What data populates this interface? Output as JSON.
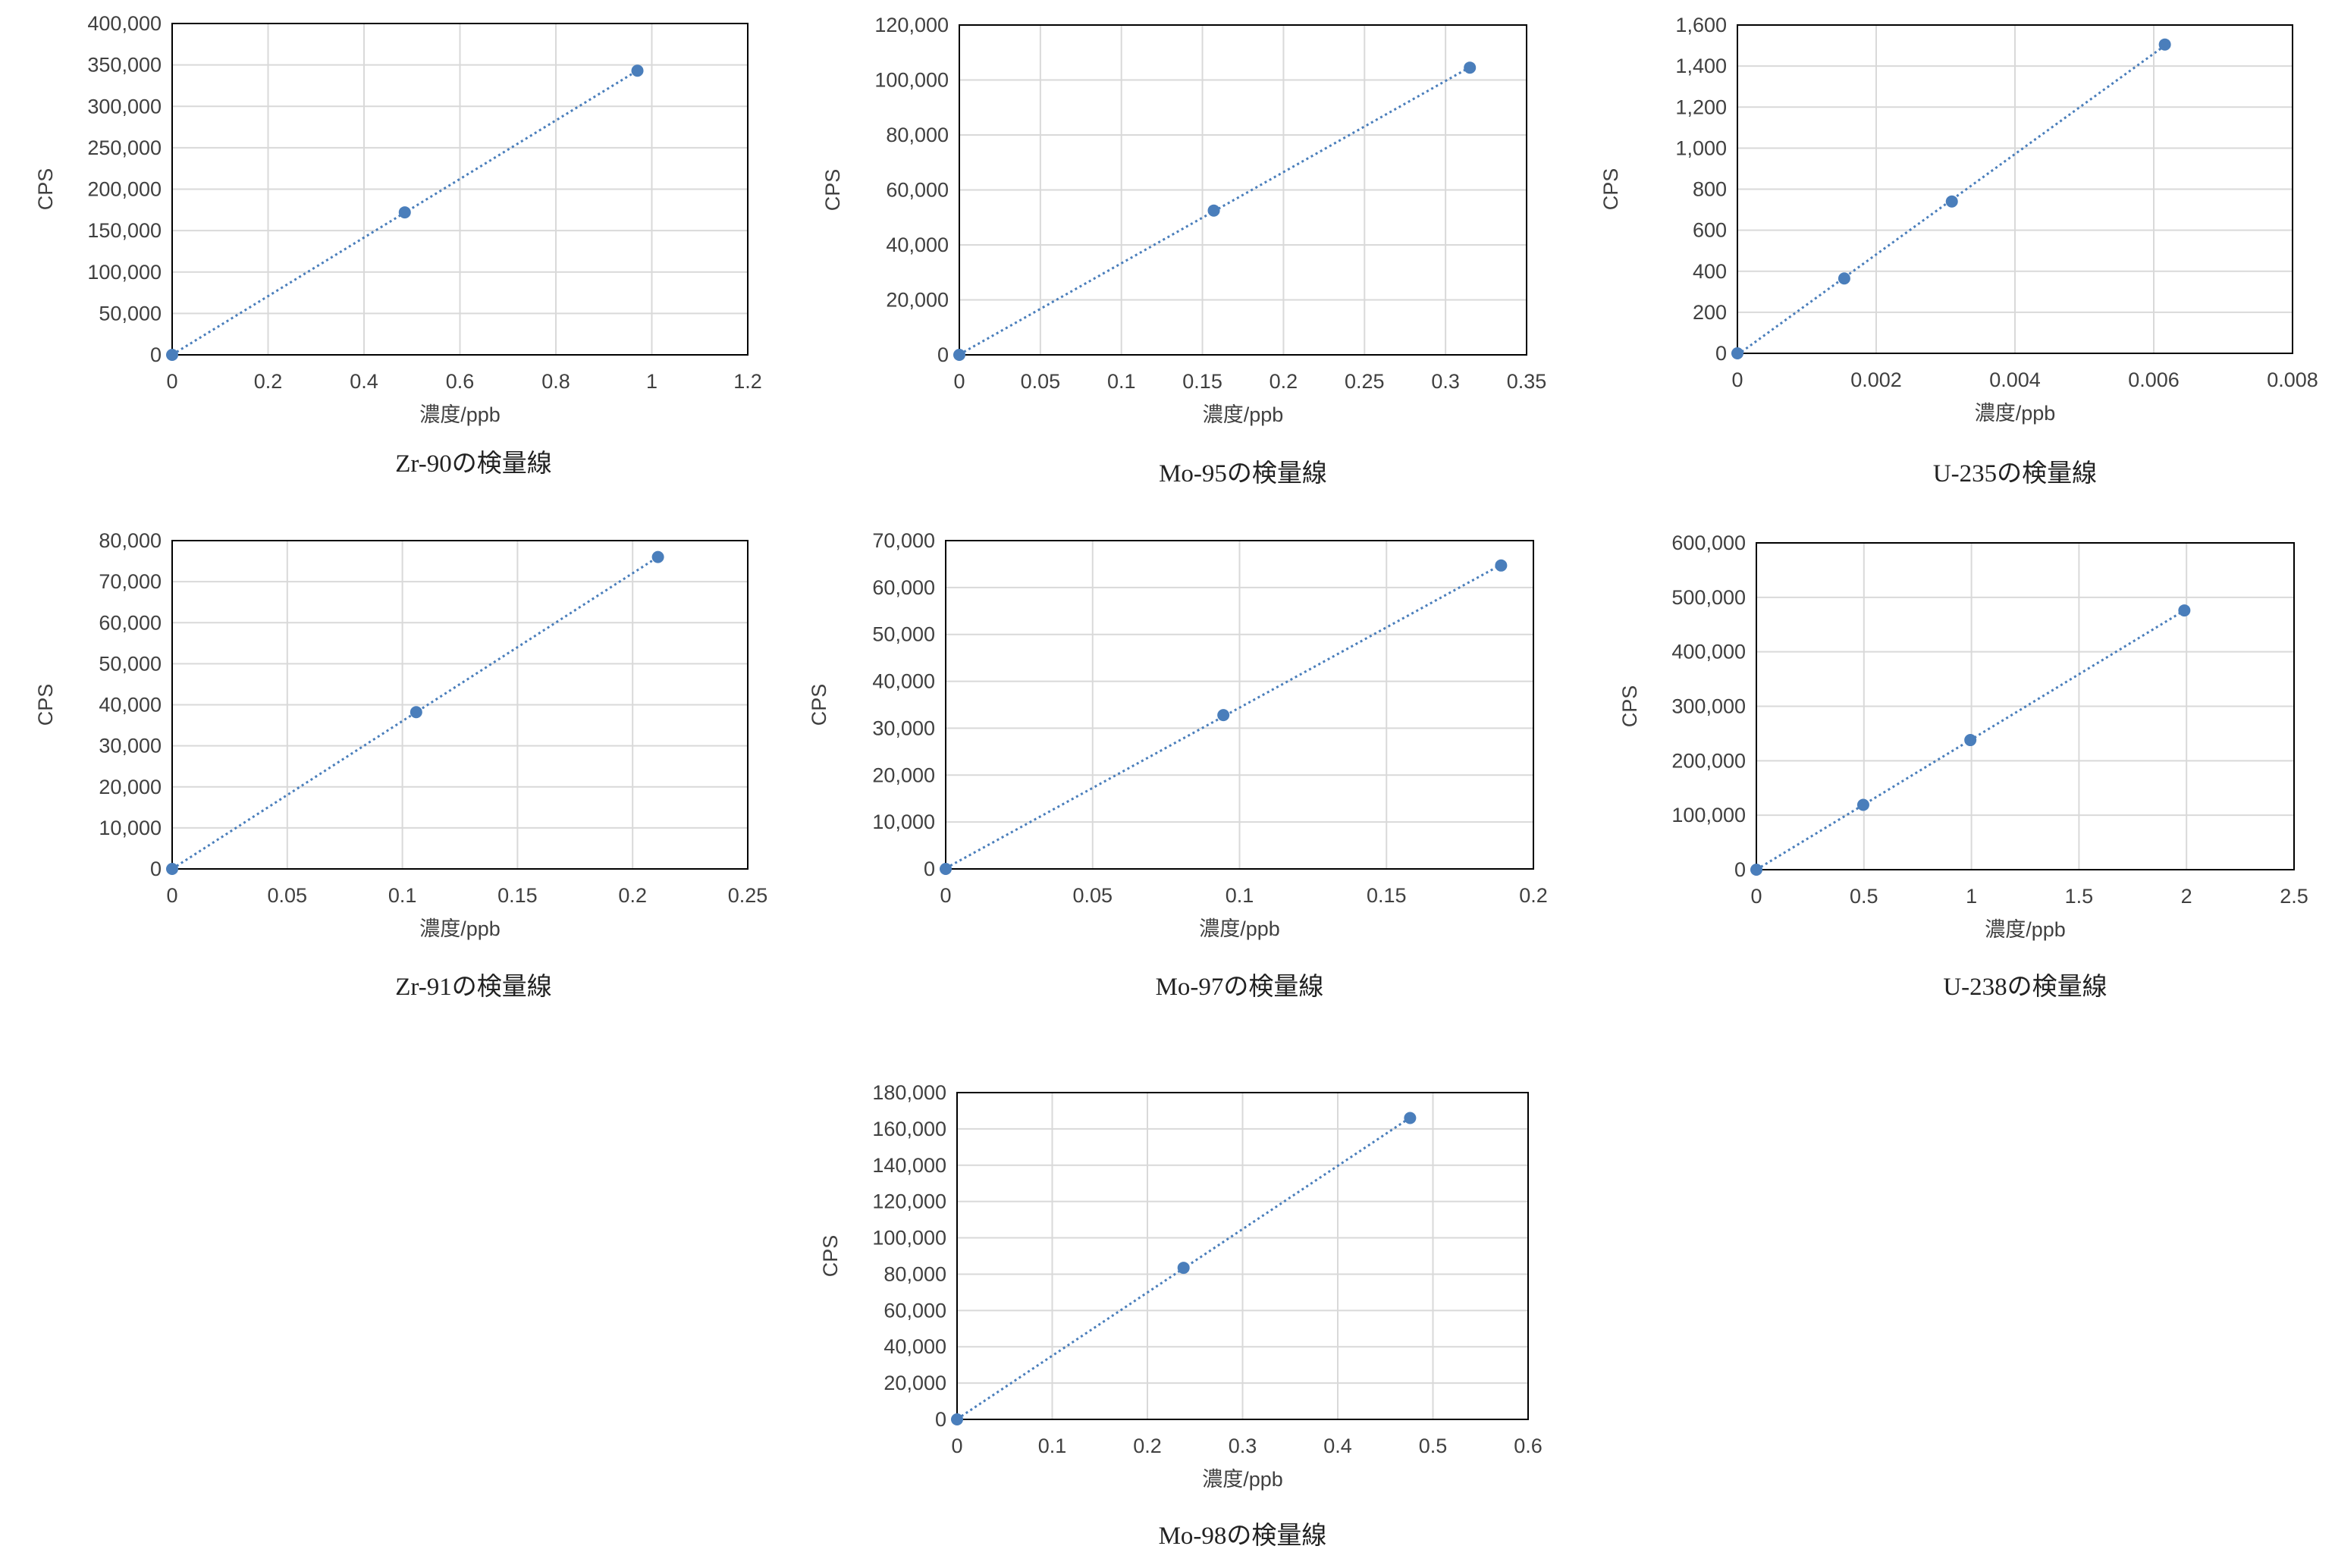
{
  "colors": {
    "marker": "#4a7ebb",
    "trendline": "#4a7ebb",
    "grid": "#d9d9d9",
    "plot_border": "#000000",
    "text": "#404040"
  },
  "chart_data": [
    {
      "type": "scatter",
      "caption": "Zr-90の検量線",
      "xlabel": "濃度/ppb",
      "ylabel": "CPS",
      "xlim": [
        0,
        1.2
      ],
      "ylim": [
        0,
        400000
      ],
      "xticks": [
        0,
        0.2,
        0.4,
        0.6,
        0.8,
        1,
        1.2
      ],
      "xtick_labels": [
        "0",
        "0.2",
        "0.4",
        "0.6",
        "0.8",
        "1",
        "1.2"
      ],
      "yticks": [
        0,
        50000,
        100000,
        150000,
        200000,
        250000,
        300000,
        350000,
        400000
      ],
      "ytick_labels": [
        "0",
        "50,000",
        "100,000",
        "150,000",
        "200,000",
        "250,000",
        "300,000",
        "350,000",
        "400,000"
      ],
      "grid": true,
      "trendline": "linear",
      "points": [
        {
          "x": 0,
          "y": 0
        },
        {
          "x": 0.485,
          "y": 172000
        },
        {
          "x": 0.97,
          "y": 343000
        }
      ]
    },
    {
      "type": "scatter",
      "caption": "Mo-95の検量線",
      "xlabel": "濃度/ppb",
      "ylabel": "CPS",
      "xlim": [
        0,
        0.35
      ],
      "ylim": [
        0,
        120000
      ],
      "xticks": [
        0,
        0.05,
        0.1,
        0.15,
        0.2,
        0.25,
        0.3,
        0.35
      ],
      "xtick_labels": [
        "0",
        "0.05",
        "0.1",
        "0.15",
        "0.2",
        "0.25",
        "0.3",
        "0.35"
      ],
      "yticks": [
        0,
        20000,
        40000,
        60000,
        80000,
        100000,
        120000
      ],
      "ytick_labels": [
        "0",
        "20,000",
        "40,000",
        "60,000",
        "80,000",
        "100,000",
        "120,000"
      ],
      "grid": true,
      "trendline": "linear",
      "points": [
        {
          "x": 0,
          "y": 0
        },
        {
          "x": 0.157,
          "y": 52500
        },
        {
          "x": 0.315,
          "y": 104500
        }
      ]
    },
    {
      "type": "scatter",
      "caption": "U-235の検量線",
      "xlabel": "濃度/ppb",
      "ylabel": "CPS",
      "xlim": [
        0,
        0.008
      ],
      "ylim": [
        0,
        1600
      ],
      "xticks": [
        0,
        0.002,
        0.004,
        0.006,
        0.008
      ],
      "xtick_labels": [
        "0",
        "0.002",
        "0.004",
        "0.006",
        "0.008"
      ],
      "yticks": [
        0,
        200,
        400,
        600,
        800,
        1000,
        1200,
        1400,
        1600
      ],
      "ytick_labels": [
        "0",
        "200",
        "400",
        "600",
        "800",
        "1,000",
        "1,200",
        "1,400",
        "1,600"
      ],
      "grid": true,
      "trendline": "linear",
      "points": [
        {
          "x": 0,
          "y": 0
        },
        {
          "x": 0.00154,
          "y": 365
        },
        {
          "x": 0.00309,
          "y": 740
        },
        {
          "x": 0.00616,
          "y": 1505
        }
      ]
    },
    {
      "type": "scatter",
      "caption": "Zr-91の検量線",
      "xlabel": "濃度/ppb",
      "ylabel": "CPS",
      "xlim": [
        0,
        0.25
      ],
      "ylim": [
        0,
        80000
      ],
      "xticks": [
        0,
        0.05,
        0.1,
        0.15,
        0.2,
        0.25
      ],
      "xtick_labels": [
        "0",
        "0.05",
        "0.1",
        "0.15",
        "0.2",
        "0.25"
      ],
      "yticks": [
        0,
        10000,
        20000,
        30000,
        40000,
        50000,
        60000,
        70000,
        80000
      ],
      "ytick_labels": [
        "0",
        "10,000",
        "20,000",
        "30,000",
        "40,000",
        "50,000",
        "60,000",
        "70,000",
        "80,000"
      ],
      "grid": true,
      "trendline": "linear",
      "points": [
        {
          "x": 0,
          "y": 0
        },
        {
          "x": 0.106,
          "y": 38200
        },
        {
          "x": 0.211,
          "y": 76000
        }
      ]
    },
    {
      "type": "scatter",
      "caption": "Mo-97の検量線",
      "xlabel": "濃度/ppb",
      "ylabel": "CPS",
      "xlim": [
        0,
        0.2
      ],
      "ylim": [
        0,
        70000
      ],
      "xticks": [
        0,
        0.05,
        0.1,
        0.15,
        0.2
      ],
      "xtick_labels": [
        "0",
        "0.05",
        "0.1",
        "0.15",
        "0.2"
      ],
      "yticks": [
        0,
        10000,
        20000,
        30000,
        40000,
        50000,
        60000,
        70000
      ],
      "ytick_labels": [
        "0",
        "10,000",
        "20,000",
        "30,000",
        "40,000",
        "50,000",
        "60,000",
        "70,000"
      ],
      "grid": true,
      "trendline": "linear",
      "points": [
        {
          "x": 0,
          "y": 0
        },
        {
          "x": 0.0945,
          "y": 32800
        },
        {
          "x": 0.189,
          "y": 64700
        }
      ]
    },
    {
      "type": "scatter",
      "caption": "U-238の検量線",
      "xlabel": "濃度/ppb",
      "ylabel": "CPS",
      "xlim": [
        0,
        2.5
      ],
      "ylim": [
        0,
        600000
      ],
      "xticks": [
        0,
        0.5,
        1,
        1.5,
        2,
        2.5
      ],
      "xtick_labels": [
        "0",
        "0.5",
        "1",
        "1.5",
        "2",
        "2.5"
      ],
      "yticks": [
        0,
        100000,
        200000,
        300000,
        400000,
        500000,
        600000
      ],
      "ytick_labels": [
        "0",
        "100,000",
        "200,000",
        "300,000",
        "400,000",
        "500,000",
        "600,000"
      ],
      "grid": true,
      "trendline": "linear",
      "points": [
        {
          "x": 0,
          "y": 0
        },
        {
          "x": 0.497,
          "y": 119000
        },
        {
          "x": 0.995,
          "y": 238000
        },
        {
          "x": 1.99,
          "y": 476000
        }
      ]
    },
    {
      "type": "scatter",
      "caption": "Mo-98の検量線",
      "xlabel": "濃度/ppb",
      "ylabel": "CPS",
      "xlim": [
        0,
        0.6
      ],
      "ylim": [
        0,
        180000
      ],
      "xticks": [
        0,
        0.1,
        0.2,
        0.3,
        0.4,
        0.5,
        0.6
      ],
      "xtick_labels": [
        "0",
        "0.1",
        "0.2",
        "0.3",
        "0.4",
        "0.5",
        "0.6"
      ],
      "yticks": [
        0,
        20000,
        40000,
        60000,
        80000,
        100000,
        120000,
        140000,
        160000,
        180000
      ],
      "ytick_labels": [
        "0",
        "20,000",
        "40,000",
        "60,000",
        "80,000",
        "100,000",
        "120,000",
        "140,000",
        "160,000",
        "180,000"
      ],
      "grid": true,
      "trendline": "linear",
      "points": [
        {
          "x": 0,
          "y": 0
        },
        {
          "x": 0.238,
          "y": 83500
        },
        {
          "x": 0.476,
          "y": 166000
        }
      ]
    }
  ]
}
